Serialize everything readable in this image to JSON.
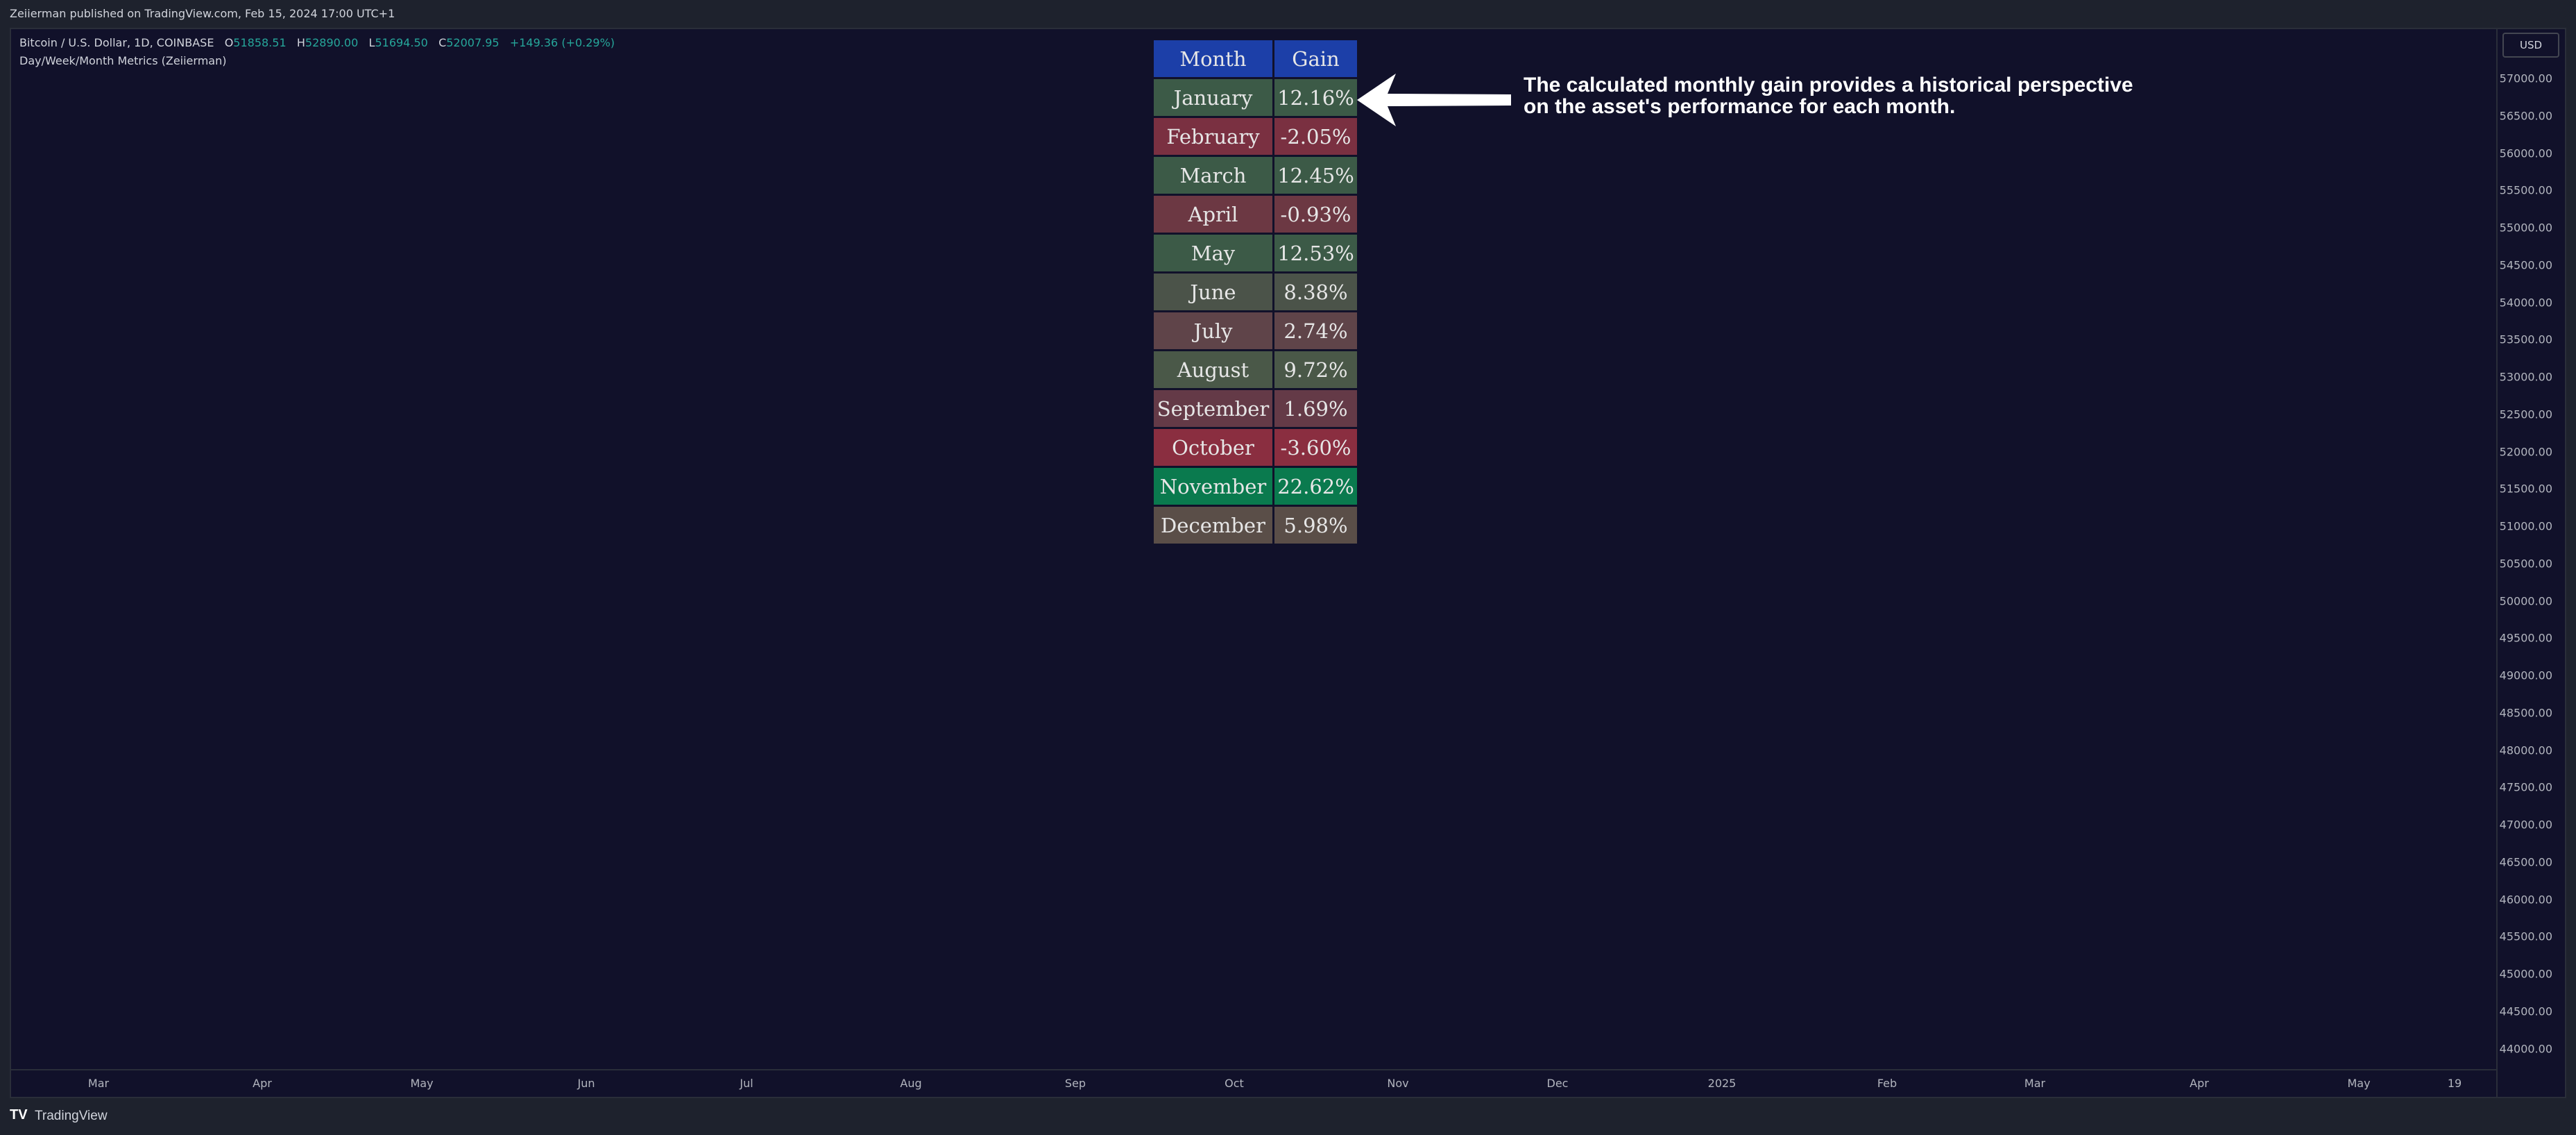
{
  "header": {
    "publish_line": "Zeiierman published on TradingView.com, Feb 15, 2024 17:00 UTC+1"
  },
  "legend": {
    "symbol": "Bitcoin / U.S. Dollar, 1D, COINBASE",
    "open_label": "O",
    "open": "51858.51",
    "high_label": "H",
    "high": "52890.00",
    "low_label": "L",
    "low": "51694.50",
    "close_label": "C",
    "close": "52007.95",
    "change": "+149.36 (+0.29%)",
    "indicator": "Day/Week/Month Metrics (Zeiierman)"
  },
  "price_axis": {
    "currency": "USD",
    "ticks": [
      "57000.00",
      "56500.00",
      "56000.00",
      "55500.00",
      "55000.00",
      "54500.00",
      "54000.00",
      "53500.00",
      "53000.00",
      "52500.00",
      "52000.00",
      "51500.00",
      "51000.00",
      "50500.00",
      "50000.00",
      "49500.00",
      "49000.00",
      "48500.00",
      "48000.00",
      "47500.00",
      "47000.00",
      "46500.00",
      "46000.00",
      "45500.00",
      "45000.00",
      "44500.00",
      "44000.00"
    ]
  },
  "time_axis": {
    "ticks": [
      "Mar",
      "Apr",
      "May",
      "Jun",
      "Jul",
      "Aug",
      "Sep",
      "Oct",
      "Nov",
      "Dec",
      "2025",
      "Feb",
      "Mar",
      "Apr",
      "May",
      "19"
    ]
  },
  "table": {
    "header_month": "Month",
    "header_gain": "Gain",
    "rows": [
      {
        "month": "January",
        "gain": "12.16%",
        "color": "#3c5a47"
      },
      {
        "month": "February",
        "gain": "-2.05%",
        "color": "#7a3041"
      },
      {
        "month": "March",
        "gain": "12.45%",
        "color": "#3c5a47"
      },
      {
        "month": "April",
        "gain": "-0.93%",
        "color": "#6c3843"
      },
      {
        "month": "May",
        "gain": "12.53%",
        "color": "#3c5a47"
      },
      {
        "month": "June",
        "gain": "8.38%",
        "color": "#4b5349"
      },
      {
        "month": "July",
        "gain": "2.74%",
        "color": "#5f4449"
      },
      {
        "month": "August",
        "gain": "9.72%",
        "color": "#4a5848"
      },
      {
        "month": "September",
        "gain": "1.69%",
        "color": "#643a47"
      },
      {
        "month": "October",
        "gain": "-3.60%",
        "color": "#8a2e40"
      },
      {
        "month": "November",
        "gain": "22.62%",
        "color": "#0a7a4e"
      },
      {
        "month": "December",
        "gain": "5.98%",
        "color": "#5a4e48"
      }
    ]
  },
  "annotation": {
    "line1": "The calculated monthly gain provides a historical perspective",
    "line2": "on the asset's performance for each month."
  },
  "footer": {
    "logo": "TV",
    "brand": "TradingView"
  },
  "colors": {
    "background": "#11112a",
    "header_cell": "#1c3fa8",
    "ohlc_text": "#26a69a"
  }
}
